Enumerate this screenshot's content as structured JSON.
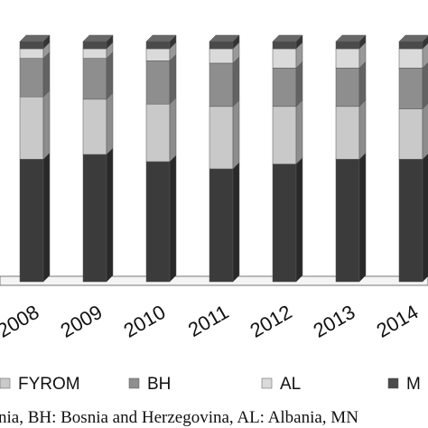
{
  "chart_data": {
    "type": "stacked-bar-3d",
    "categories": [
      "2008",
      "2009",
      "2010",
      "2011",
      "2012",
      "2013",
      "2014"
    ],
    "ylim": [
      0,
      100
    ],
    "series": [
      {
        "name": null,
        "color": "#3b3b3b",
        "values": [
          51,
          53,
          50,
          47,
          49,
          51,
          51
        ]
      },
      {
        "name": "FYROM",
        "color": "#c9c9c9",
        "values": [
          26,
          23,
          24,
          26,
          24,
          22,
          21
        ]
      },
      {
        "name": "BH",
        "color": "#8e8e8e",
        "values": [
          16,
          17,
          18,
          18,
          16,
          16,
          17
        ]
      },
      {
        "name": "AL",
        "color": "#dadada",
        "values": [
          4,
          4,
          5,
          6,
          8,
          8,
          8
        ]
      },
      {
        "name": "M",
        "color": "#4a4a4a",
        "values": [
          3,
          3,
          3,
          3,
          3,
          3,
          3
        ]
      }
    ],
    "caption": "nia, BH: Bosnia and Herzegovina, AL: Albania, MN"
  }
}
